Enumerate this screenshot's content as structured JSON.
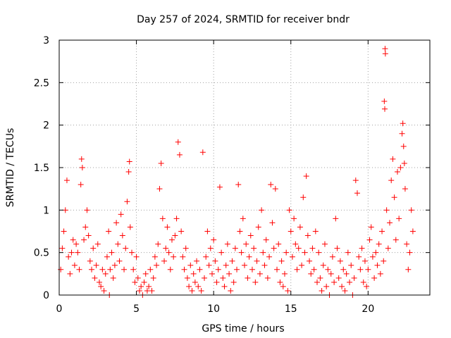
{
  "chart_data": {
    "type": "scatter",
    "title": "Day 257 of 2024, SRMTID for receiver bndr",
    "xlabel": "GPS time / hours",
    "ylabel": "SRMTID / TECUs",
    "xlim": [
      0,
      24
    ],
    "ylim": [
      0,
      3
    ],
    "xticks": [
      "0",
      "5",
      "10",
      "15",
      "20"
    ],
    "yticks": [
      "0",
      "0.5",
      "1",
      "1.5",
      "2",
      "2.5",
      "3"
    ],
    "grid": true,
    "marker": "+",
    "color": "#ff0000",
    "series": [
      {
        "name": "SRMTID",
        "points": [
          [
            0.1,
            0.3
          ],
          [
            0.2,
            0.55
          ],
          [
            0.3,
            0.75
          ],
          [
            0.4,
            1.0
          ],
          [
            0.5,
            1.35
          ],
          [
            0.6,
            0.45
          ],
          [
            0.7,
            0.25
          ],
          [
            0.8,
            0.5
          ],
          [
            0.9,
            0.65
          ],
          [
            1.0,
            0.35
          ],
          [
            1.1,
            0.6
          ],
          [
            1.2,
            0.5
          ],
          [
            1.3,
            0.3
          ],
          [
            1.4,
            1.3
          ],
          [
            1.45,
            1.6
          ],
          [
            1.5,
            1.5
          ],
          [
            1.6,
            0.65
          ],
          [
            1.7,
            0.8
          ],
          [
            1.8,
            1.0
          ],
          [
            1.9,
            0.7
          ],
          [
            2.0,
            0.4
          ],
          [
            2.1,
            0.3
          ],
          [
            2.2,
            0.55
          ],
          [
            2.3,
            0.2
          ],
          [
            2.4,
            0.35
          ],
          [
            2.5,
            0.6
          ],
          [
            2.6,
            0.15
          ],
          [
            2.7,
            0.1
          ],
          [
            2.8,
            0.3
          ],
          [
            2.9,
            0.05
          ],
          [
            3.0,
            0.25
          ],
          [
            3.1,
            0.45
          ],
          [
            3.2,
            0.75
          ],
          [
            3.25,
            0.0
          ],
          [
            3.3,
            0.3
          ],
          [
            3.4,
            0.5
          ],
          [
            3.5,
            0.2
          ],
          [
            3.6,
            0.35
          ],
          [
            3.7,
            0.85
          ],
          [
            3.8,
            0.6
          ],
          [
            3.9,
            0.4
          ],
          [
            4.0,
            0.95
          ],
          [
            4.1,
            0.7
          ],
          [
            4.2,
            0.3
          ],
          [
            4.3,
            0.55
          ],
          [
            4.4,
            1.1
          ],
          [
            4.5,
            1.45
          ],
          [
            4.55,
            1.57
          ],
          [
            4.6,
            0.8
          ],
          [
            4.7,
            0.5
          ],
          [
            4.8,
            0.3
          ],
          [
            4.9,
            0.15
          ],
          [
            5.0,
            0.45
          ],
          [
            5.1,
            0.2
          ],
          [
            5.2,
            0.05
          ],
          [
            5.3,
            0.1
          ],
          [
            5.4,
            0.0
          ],
          [
            5.5,
            0.15
          ],
          [
            5.6,
            0.25
          ],
          [
            5.7,
            0.05
          ],
          [
            5.8,
            0.1
          ],
          [
            5.9,
            0.3
          ],
          [
            6.0,
            0.05
          ],
          [
            6.1,
            0.2
          ],
          [
            6.2,
            0.45
          ],
          [
            6.3,
            0.35
          ],
          [
            6.4,
            0.6
          ],
          [
            6.5,
            1.25
          ],
          [
            6.6,
            1.55
          ],
          [
            6.7,
            0.9
          ],
          [
            6.8,
            0.4
          ],
          [
            6.9,
            0.55
          ],
          [
            7.0,
            0.8
          ],
          [
            7.1,
            0.5
          ],
          [
            7.2,
            0.3
          ],
          [
            7.3,
            0.65
          ],
          [
            7.4,
            0.45
          ],
          [
            7.5,
            0.7
          ],
          [
            7.6,
            0.9
          ],
          [
            7.7,
            1.8
          ],
          [
            7.8,
            1.65
          ],
          [
            7.9,
            0.75
          ],
          [
            8.0,
            0.45
          ],
          [
            8.1,
            0.3
          ],
          [
            8.2,
            0.55
          ],
          [
            8.3,
            0.2
          ],
          [
            8.4,
            0.1
          ],
          [
            8.5,
            0.35
          ],
          [
            8.6,
            0.05
          ],
          [
            8.7,
            0.25
          ],
          [
            8.8,
            0.15
          ],
          [
            8.9,
            0.4
          ],
          [
            9.0,
            0.1
          ],
          [
            9.1,
            0.3
          ],
          [
            9.2,
            0.05
          ],
          [
            9.3,
            1.68
          ],
          [
            9.4,
            0.2
          ],
          [
            9.5,
            0.45
          ],
          [
            9.6,
            0.75
          ],
          [
            9.7,
            0.35
          ],
          [
            9.8,
            0.55
          ],
          [
            9.9,
            0.25
          ],
          [
            10.0,
            0.65
          ],
          [
            10.1,
            0.4
          ],
          [
            10.2,
            0.15
          ],
          [
            10.3,
            0.3
          ],
          [
            10.4,
            1.27
          ],
          [
            10.5,
            0.5
          ],
          [
            10.6,
            0.2
          ],
          [
            10.7,
            0.1
          ],
          [
            10.8,
            0.35
          ],
          [
            10.9,
            0.6
          ],
          [
            11.0,
            0.25
          ],
          [
            11.1,
            0.05
          ],
          [
            11.2,
            0.4
          ],
          [
            11.3,
            0.15
          ],
          [
            11.4,
            0.55
          ],
          [
            11.5,
            0.3
          ],
          [
            11.6,
            1.3
          ],
          [
            11.7,
            0.75
          ],
          [
            11.8,
            0.5
          ],
          [
            11.9,
            0.9
          ],
          [
            12.0,
            0.35
          ],
          [
            12.1,
            0.6
          ],
          [
            12.2,
            0.2
          ],
          [
            12.3,
            0.45
          ],
          [
            12.4,
            0.7
          ],
          [
            12.5,
            0.3
          ],
          [
            12.6,
            0.55
          ],
          [
            12.7,
            0.15
          ],
          [
            12.8,
            0.4
          ],
          [
            12.9,
            0.8
          ],
          [
            13.0,
            0.25
          ],
          [
            13.1,
            1.0
          ],
          [
            13.2,
            0.5
          ],
          [
            13.3,
            0.35
          ],
          [
            13.4,
            0.65
          ],
          [
            13.5,
            0.2
          ],
          [
            13.6,
            0.45
          ],
          [
            13.7,
            1.3
          ],
          [
            13.8,
            0.85
          ],
          [
            13.9,
            0.55
          ],
          [
            14.0,
            1.25
          ],
          [
            14.1,
            0.3
          ],
          [
            14.2,
            0.6
          ],
          [
            14.3,
            0.15
          ],
          [
            14.4,
            0.4
          ],
          [
            14.5,
            0.1
          ],
          [
            14.6,
            0.25
          ],
          [
            14.7,
            0.5
          ],
          [
            14.8,
            0.05
          ],
          [
            14.9,
            1.0
          ],
          [
            15.0,
            0.75
          ],
          [
            15.1,
            0.45
          ],
          [
            15.2,
            0.9
          ],
          [
            15.3,
            0.6
          ],
          [
            15.4,
            0.3
          ],
          [
            15.5,
            0.55
          ],
          [
            15.6,
            0.8
          ],
          [
            15.7,
            0.35
          ],
          [
            15.8,
            1.15
          ],
          [
            15.9,
            0.5
          ],
          [
            16.0,
            1.4
          ],
          [
            16.1,
            0.7
          ],
          [
            16.2,
            0.4
          ],
          [
            16.3,
            0.25
          ],
          [
            16.4,
            0.55
          ],
          [
            16.5,
            0.3
          ],
          [
            16.6,
            0.75
          ],
          [
            16.7,
            0.15
          ],
          [
            16.8,
            0.5
          ],
          [
            16.9,
            0.2
          ],
          [
            17.0,
            0.05
          ],
          [
            17.1,
            0.35
          ],
          [
            17.2,
            0.6
          ],
          [
            17.3,
            0.1
          ],
          [
            17.4,
            0.3
          ],
          [
            17.5,
            0.0
          ],
          [
            17.6,
            0.25
          ],
          [
            17.7,
            0.45
          ],
          [
            17.8,
            0.15
          ],
          [
            17.9,
            0.9
          ],
          [
            18.0,
            0.55
          ],
          [
            18.1,
            0.2
          ],
          [
            18.2,
            0.4
          ],
          [
            18.3,
            0.1
          ],
          [
            18.4,
            0.3
          ],
          [
            18.5,
            0.05
          ],
          [
            18.6,
            0.25
          ],
          [
            18.7,
            0.5
          ],
          [
            18.8,
            0.15
          ],
          [
            18.9,
            0.35
          ],
          [
            19.0,
            0.0
          ],
          [
            19.1,
            0.2
          ],
          [
            19.2,
            1.35
          ],
          [
            19.3,
            1.2
          ],
          [
            19.4,
            0.45
          ],
          [
            19.5,
            0.3
          ],
          [
            19.6,
            0.55
          ],
          [
            19.7,
            0.15
          ],
          [
            19.8,
            0.4
          ],
          [
            19.9,
            0.1
          ],
          [
            20.0,
            0.3
          ],
          [
            20.1,
            0.65
          ],
          [
            20.2,
            0.8
          ],
          [
            20.3,
            0.45
          ],
          [
            20.4,
            0.2
          ],
          [
            20.5,
            0.5
          ],
          [
            20.6,
            0.35
          ],
          [
            20.7,
            0.6
          ],
          [
            20.8,
            0.25
          ],
          [
            20.9,
            0.75
          ],
          [
            21.0,
            0.4
          ],
          [
            21.05,
            2.28
          ],
          [
            21.08,
            2.19
          ],
          [
            21.1,
            2.9
          ],
          [
            21.12,
            2.84
          ],
          [
            21.2,
            1.0
          ],
          [
            21.3,
            0.55
          ],
          [
            21.4,
            0.85
          ],
          [
            21.5,
            1.35
          ],
          [
            21.6,
            1.6
          ],
          [
            21.7,
            1.15
          ],
          [
            21.8,
            0.65
          ],
          [
            21.9,
            1.45
          ],
          [
            22.0,
            0.9
          ],
          [
            22.1,
            1.5
          ],
          [
            22.2,
            1.9
          ],
          [
            22.25,
            2.02
          ],
          [
            22.3,
            1.75
          ],
          [
            22.35,
            1.55
          ],
          [
            22.4,
            1.25
          ],
          [
            22.5,
            0.6
          ],
          [
            22.6,
            0.3
          ],
          [
            22.7,
            0.5
          ],
          [
            22.8,
            1.0
          ],
          [
            22.9,
            0.75
          ]
        ]
      }
    ]
  }
}
